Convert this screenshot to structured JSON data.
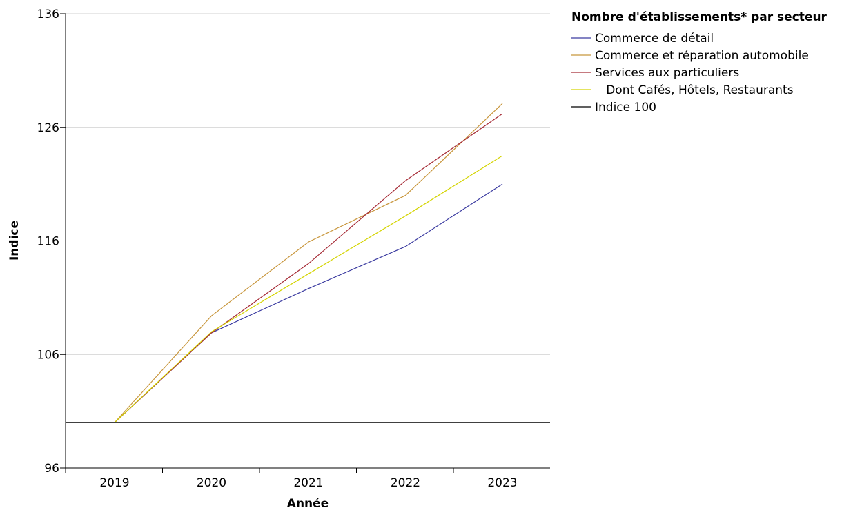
{
  "chart_data": {
    "type": "line",
    "xlabel": "Année",
    "ylabel": "Indice",
    "legend_title": "Nombre d'établissements* par secteur",
    "legend_position": "top-right",
    "x": [
      "2019",
      "2020",
      "2021",
      "2022",
      "2023"
    ],
    "ylim": [
      96,
      136
    ],
    "yticks": [
      96,
      106,
      116,
      126,
      136
    ],
    "grid": true,
    "series": [
      {
        "name": "Commerce de détail",
        "color": "#3a3aa0",
        "values": [
          100,
          107.9,
          111.8,
          115.5,
          121
        ]
      },
      {
        "name": "Commerce et réparation automobile",
        "color": "#c8963c",
        "values": [
          100,
          109.4,
          115.9,
          120,
          128.1
        ]
      },
      {
        "name": "Services aux particuliers",
        "color": "#a52a35",
        "values": [
          100,
          107.9,
          114,
          121.3,
          127.2
        ]
      },
      {
        "name": "   Dont Cafés, Hôtels, Restaurants",
        "color": "#d4d400",
        "values": [
          100,
          108,
          113.1,
          118.2,
          123.5
        ]
      },
      {
        "name": "Indice 100",
        "color": "#000000",
        "values": [
          100,
          100,
          100,
          100,
          100
        ],
        "full_width": true
      }
    ]
  }
}
